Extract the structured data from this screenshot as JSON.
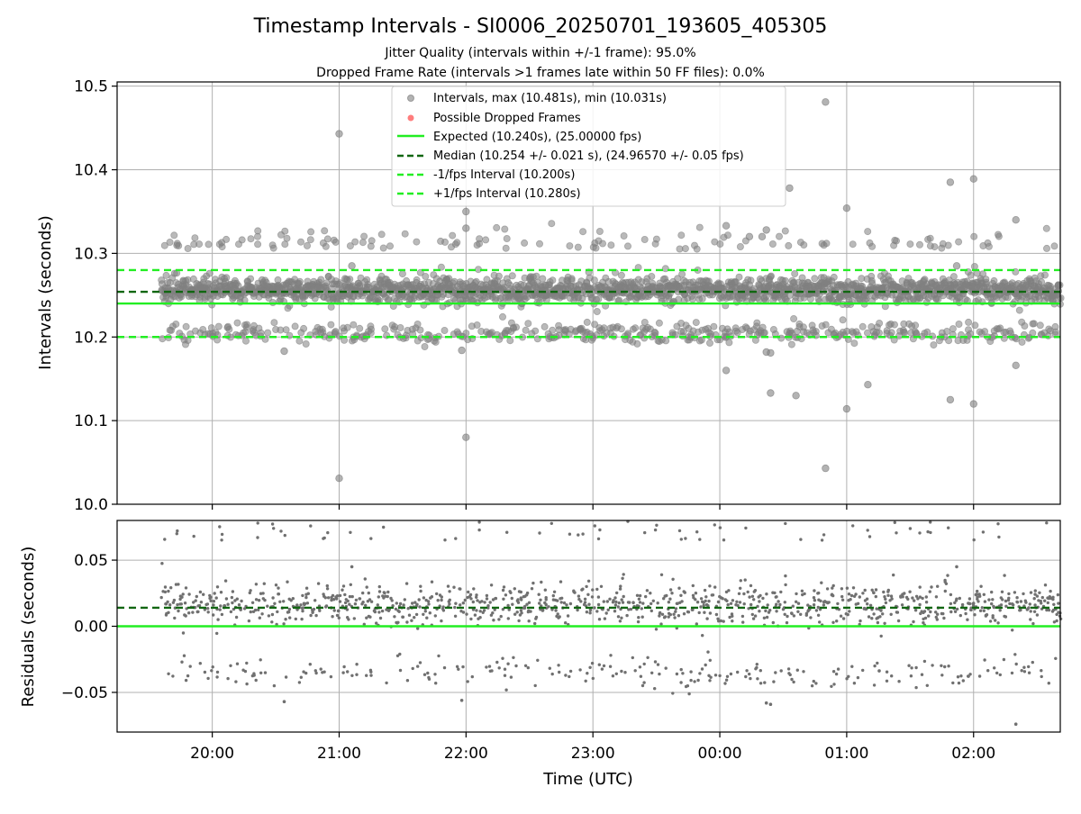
{
  "chart_data": {
    "type": "scatter",
    "title": "Timestamp Intervals - SI0006_20250701_193605_405305",
    "subtitles": [
      "Jitter Quality (intervals within +/-1 frame): 95.0%",
      "Dropped Frame Rate (intervals >1 frames late within 50 FF files): 0.0%"
    ],
    "xlabel": "Time (UTC)",
    "x_ticks": [
      "20:00",
      "21:00",
      "22:00",
      "23:00",
      "00:00",
      "01:00",
      "02:00"
    ],
    "x_range": [
      "2025-07-01 19:15",
      "2025-07-02 02:41"
    ],
    "x_data_range": [
      "2025-07-01 19:36",
      "2025-07-02 02:41"
    ],
    "panels": [
      {
        "name": "intervals",
        "ylabel": "Intervals (seconds)",
        "ylim": [
          10.0,
          10.505
        ],
        "y_ticks": [
          "10.0",
          "10.1",
          "10.2",
          "10.3",
          "10.4",
          "10.5"
        ],
        "grid": true,
        "legend_position": "top-center",
        "series": [
          {
            "name": "Intervals, max (10.481s), min (10.031s)",
            "style": "scatter",
            "color": "#808080",
            "main_cluster_center": 10.256,
            "main_cluster_spread": 0.008,
            "lower_cluster_center": 10.205,
            "lower_cluster_spread": 0.006,
            "upper_cluster_center": 10.305,
            "cluster_share": [
              0.78,
              0.17,
              0.05
            ],
            "outliers": [
              {
                "x": "2025-07-01 21:00",
                "y": 10.443
              },
              {
                "x": "2025-07-01 21:00",
                "y": 10.031
              },
              {
                "x": "2025-07-01 22:00",
                "y": 10.08
              },
              {
                "x": "2025-07-01 22:00",
                "y": 10.35
              },
              {
                "x": "2025-07-01 22:00",
                "y": 10.33
              },
              {
                "x": "2025-07-01 21:06",
                "y": 10.285
              },
              {
                "x": "2025-07-02 00:03",
                "y": 10.16
              },
              {
                "x": "2025-07-02 00:03",
                "y": 10.333
              },
              {
                "x": "2025-07-02 00:24",
                "y": 10.133
              },
              {
                "x": "2025-07-02 00:36",
                "y": 10.13
              },
              {
                "x": "2025-07-02 00:33",
                "y": 10.378
              },
              {
                "x": "2025-07-02 00:50",
                "y": 10.481
              },
              {
                "x": "2025-07-02 00:50",
                "y": 10.043
              },
              {
                "x": "2025-07-02 01:00",
                "y": 10.114
              },
              {
                "x": "2025-07-02 01:00",
                "y": 10.354
              },
              {
                "x": "2025-07-02 01:10",
                "y": 10.143
              },
              {
                "x": "2025-07-02 01:49",
                "y": 10.125
              },
              {
                "x": "2025-07-02 01:49",
                "y": 10.385
              },
              {
                "x": "2025-07-02 02:00",
                "y": 10.12
              },
              {
                "x": "2025-07-02 02:00",
                "y": 10.389
              },
              {
                "x": "2025-07-02 02:20",
                "y": 10.166
              },
              {
                "x": "2025-07-02 02:20",
                "y": 10.34
              },
              {
                "x": "2025-07-01 21:58",
                "y": 10.184
              },
              {
                "x": "2025-07-01 20:34",
                "y": 10.183
              },
              {
                "x": "2025-07-02 00:22",
                "y": 10.182
              },
              {
                "x": "2025-07-02 00:24",
                "y": 10.181
              },
              {
                "x": "2025-07-02 00:20",
                "y": 10.32
              },
              {
                "x": "2025-07-02 00:22",
                "y": 10.328
              },
              {
                "x": "2025-07-02 00:14",
                "y": 10.32
              },
              {
                "x": "2025-07-02 01:52",
                "y": 10.285
              }
            ]
          },
          {
            "name": "Possible Dropped Frames",
            "style": "scatter",
            "color": "#ff6666",
            "values": []
          },
          {
            "name": "Expected (10.240s), (25.00000 fps)",
            "style": "solid",
            "color": "#22ee22",
            "y": 10.24
          },
          {
            "name": "Median (10.254 +/- 0.021 s), (24.96570 +/- 0.05 fps)",
            "style": "dashed",
            "color": "#116611",
            "y": 10.254
          },
          {
            "name": "-1/fps Interval (10.200s)",
            "style": "dashed",
            "color": "#22ee22",
            "y": 10.2
          },
          {
            "name": "+1/fps Interval (10.280s)",
            "style": "dashed",
            "color": "#22ee22",
            "y": 10.28
          }
        ]
      },
      {
        "name": "residuals",
        "ylabel": "Residuals (seconds)",
        "ylim": [
          -0.08,
          0.08
        ],
        "y_ticks": [
          "−0.05",
          "0.00",
          "0.05"
        ],
        "y_tick_values": [
          -0.05,
          0.0,
          0.05
        ],
        "grid": true,
        "series": [
          {
            "name": "residuals",
            "style": "scatter",
            "color": "#707070",
            "main_cluster_center": 0.016,
            "main_cluster_spread": 0.008,
            "lower_cluster_center": -0.035,
            "lower_cluster_spread": 0.006,
            "upper_cluster_center": 0.065,
            "cluster_share": [
              0.78,
              0.17,
              0.05
            ]
          },
          {
            "name": "zero",
            "style": "solid",
            "color": "#22ee22",
            "y": 0.0
          },
          {
            "name": "median",
            "style": "dashed",
            "color": "#116611",
            "y": 0.014
          }
        ]
      }
    ]
  }
}
